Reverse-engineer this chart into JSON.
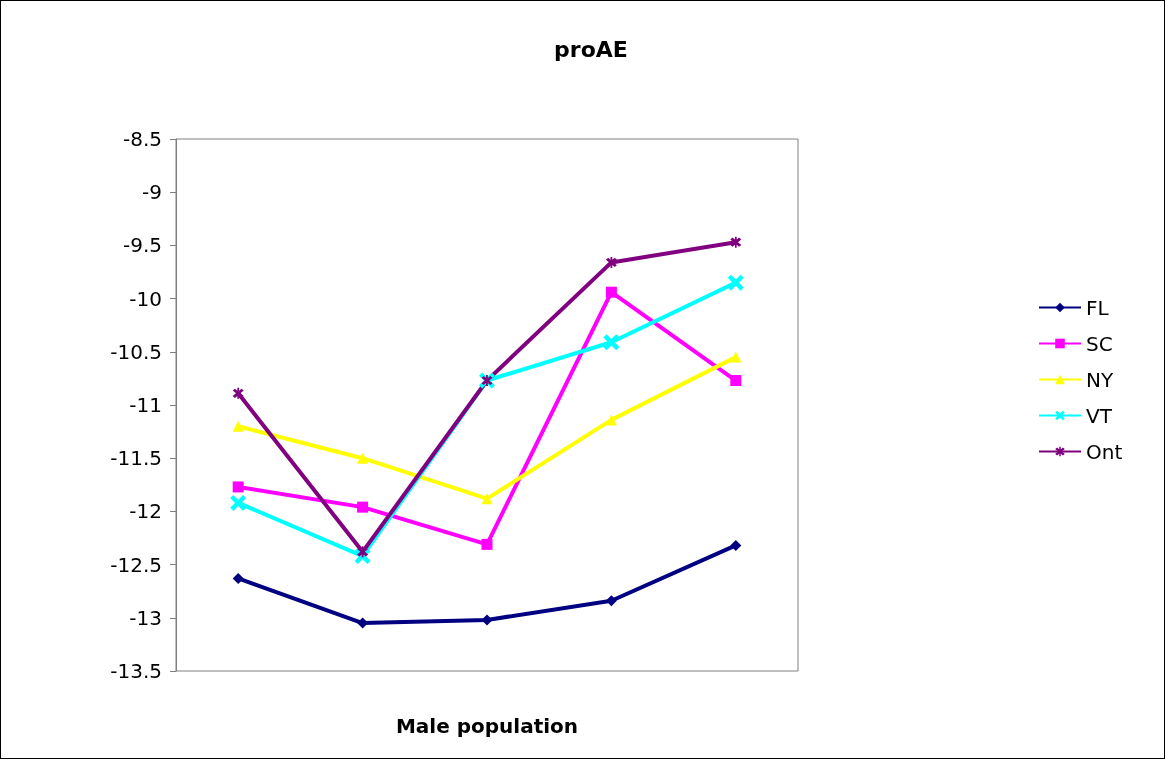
{
  "chart_data": {
    "type": "line",
    "title": "proAE",
    "xlabel": "Male population",
    "categories": [
      null,
      null,
      null,
      null,
      null
    ],
    "series": [
      {
        "name": "FL",
        "color": "#000080",
        "marker": "diamond",
        "values": [
          -12.63,
          -13.05,
          -13.02,
          -12.84,
          -12.32
        ]
      },
      {
        "name": "SC",
        "color": "#ff00ff",
        "marker": "square",
        "values": [
          -11.77,
          -11.96,
          -12.31,
          -9.94,
          -10.77
        ]
      },
      {
        "name": "NY",
        "color": "#ffff00",
        "marker": "triangle",
        "values": [
          -11.2,
          -11.5,
          -11.88,
          -11.14,
          -10.55
        ]
      },
      {
        "name": "VT",
        "color": "#00ffff",
        "marker": "cross",
        "values": [
          -11.92,
          -12.42,
          -10.77,
          -10.41,
          -9.85
        ]
      },
      {
        "name": "Ont",
        "color": "#800080",
        "marker": "star",
        "values": [
          -10.89,
          -12.38,
          -10.77,
          -9.66,
          -9.47
        ]
      }
    ],
    "ylim": [
      -13.5,
      -8.5
    ],
    "yticks": [
      -13.5,
      -13,
      -12.5,
      -12,
      -11.5,
      -11,
      -10.5,
      -10,
      -9.5,
      -9,
      -8.5
    ],
    "grid": false,
    "legend": "right",
    "line_style": "solid"
  }
}
